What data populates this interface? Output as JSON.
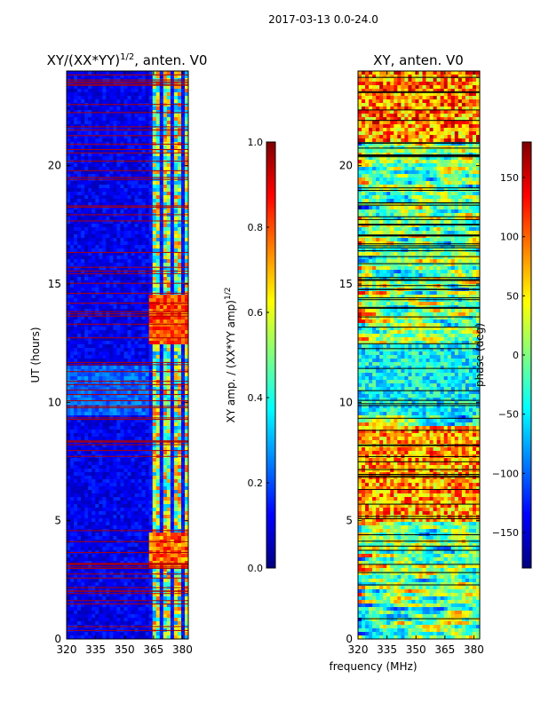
{
  "figure_title": "2017-03-13 0.0-24.0",
  "shared_xlabel": "frequency (MHz)",
  "chart_data": [
    {
      "type": "heatmap",
      "title_main": "XY/(XX*YY)",
      "title_exp": "1/2",
      "title_rest": ", anten. V0",
      "ylabel": "UT (hours)",
      "x_ticks": [
        320,
        335,
        350,
        365,
        380
      ],
      "xlim": [
        320,
        383
      ],
      "y_ticks": [
        0,
        5,
        10,
        15,
        20
      ],
      "ylim": [
        0,
        24
      ],
      "colorbar": {
        "label_main": "XY amp. / (XX*YY amp)",
        "label_exp": "1/2",
        "ticks": [
          "0.0",
          "0.2",
          "0.4",
          "0.6",
          "0.8",
          "1.0"
        ],
        "range": [
          0,
          1
        ]
      },
      "colormap": "jet"
    },
    {
      "type": "heatmap",
      "title_main": "XY, anten. V0",
      "ylabel": "",
      "x_ticks": [
        320,
        335,
        350,
        365,
        380
      ],
      "xlim": [
        320,
        383
      ],
      "y_ticks": [
        0,
        5,
        10,
        15,
        20
      ],
      "ylim": [
        0,
        24
      ],
      "colorbar": {
        "label_main": "phase (deg)",
        "ticks": [
          "−150",
          "−100",
          "−50",
          "0",
          "50",
          "100",
          "150"
        ],
        "tick_values": [
          -150,
          -100,
          -50,
          0,
          50,
          100,
          150
        ],
        "range": [
          -180,
          180
        ]
      },
      "colormap": "jet"
    }
  ],
  "colors": {
    "jet_darkblue": "#00007f",
    "jet_blue": "#0000ff",
    "jet_cyan": "#00ffff",
    "jet_yellow": "#ffff00",
    "jet_red": "#ff0000",
    "jet_darkred": "#7f0000"
  }
}
